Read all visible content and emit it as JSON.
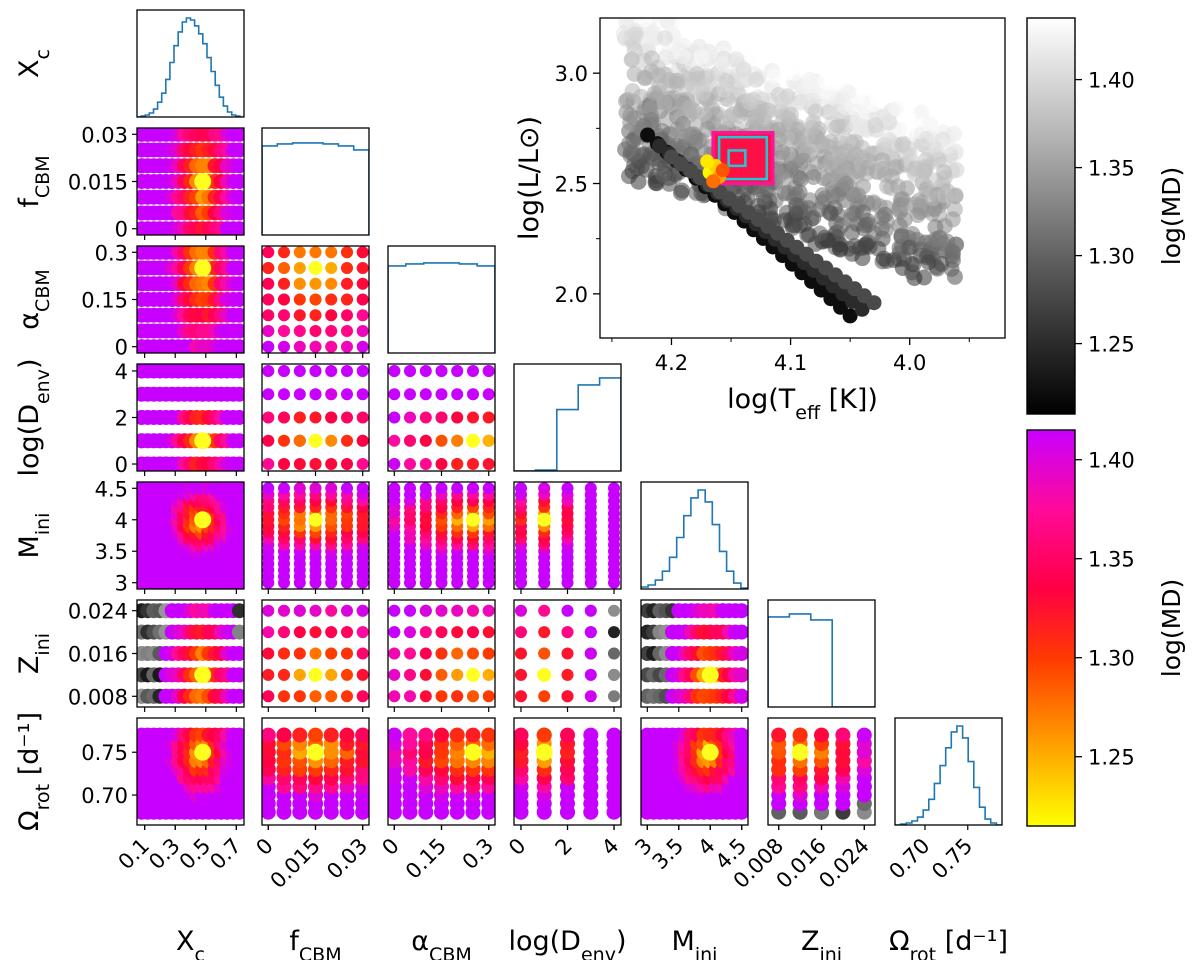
{
  "params": [
    {
      "id": "Xc",
      "name": "X",
      "sub": "c",
      "ticks": [
        "0.1",
        "0.3",
        "0.5",
        "0.7"
      ],
      "ticks_y": [],
      "range": [
        0.05,
        0.75
      ],
      "hist": [
        0,
        1,
        2,
        4,
        8,
        15,
        24,
        38,
        55,
        72,
        86,
        96,
        100,
        98,
        92,
        84,
        74,
        60,
        46,
        32,
        20,
        11,
        5,
        2,
        1,
        0
      ]
    },
    {
      "id": "fCBM",
      "name": "f",
      "sub": "CBM",
      "ticks": [
        "0",
        "0.015",
        "0.03"
      ],
      "ticks_y": [
        "0",
        "0.015",
        "0.03"
      ],
      "range": [
        -0.002,
        0.032
      ],
      "hist": [
        90,
        92,
        93,
        93,
        92,
        90,
        86
      ]
    },
    {
      "id": "aCBM",
      "name": "α",
      "sub": "CBM",
      "ticks": [
        "0",
        "0.15",
        "0.3"
      ],
      "ticks_y": [
        "0",
        "0.15",
        "0.3"
      ],
      "range": [
        -0.02,
        0.32
      ],
      "hist": [
        88,
        90,
        91,
        91,
        90,
        88
      ]
    },
    {
      "id": "Denv",
      "name": "log(D",
      "sub": "env",
      "suffix": ")",
      "ticks": [
        "0",
        "2",
        "4"
      ],
      "ticks_y": [
        "0",
        "2",
        "4"
      ],
      "range": [
        -0.3,
        4.3
      ],
      "hist": [
        0,
        1,
        62,
        87,
        94
      ]
    },
    {
      "id": "Mini",
      "name": "M",
      "sub": "ini",
      "ticks": [
        "3",
        "3.5",
        "4",
        "4.5"
      ],
      "ticks_y": [
        "3",
        "3.5",
        "4",
        "4.5"
      ],
      "range": [
        2.9,
        4.6
      ],
      "hist": [
        2,
        4,
        9,
        18,
        32,
        52,
        74,
        92,
        100,
        88,
        65,
        38,
        18,
        6,
        1
      ]
    },
    {
      "id": "Zini",
      "name": "Z",
      "sub": "ini",
      "ticks": [
        "0.008",
        "0.016",
        "0.024"
      ],
      "ticks_y": [
        "0.008",
        "0.016",
        "0.024"
      ],
      "range": [
        0.006,
        0.026
      ],
      "hist": [
        91,
        94,
        88,
        0,
        0
      ]
    },
    {
      "id": "Orot",
      "name": "Ω",
      "sub": "rot",
      "suffix": " [d⁻¹]",
      "ticks": [
        "0.70",
        "0.75"
      ],
      "ticks_y": [
        "0.70",
        "0.75"
      ],
      "range": [
        0.665,
        0.79
      ],
      "hist": [
        0,
        1,
        2,
        4,
        8,
        15,
        26,
        42,
        60,
        78,
        94,
        100,
        88,
        64,
        38,
        18,
        6,
        2,
        0
      ]
    }
  ],
  "hrd": {
    "xlabel_main": "log(T",
    "xlabel_sub": "eff",
    "xlabel_tail": " [K])",
    "ylabel": "log(L/L⊙)",
    "xticks": [
      "4.2",
      "4.1",
      "4.0"
    ],
    "yticks": [
      "2.0",
      "2.5",
      "3.0"
    ],
    "xlim": [
      4.26,
      3.92
    ],
    "ylim": [
      1.8,
      3.25
    ],
    "box_outer": {
      "t1": 4.165,
      "t2": 4.115,
      "l1": 2.5,
      "l2": 2.73
    },
    "box_mid": {
      "t1": 4.16,
      "t2": 4.12,
      "l1": 2.52,
      "l2": 2.71
    },
    "box_inner": {
      "t1": 4.152,
      "t2": 4.138,
      "l1": 2.58,
      "l2": 2.65
    }
  },
  "colorbars": {
    "gray": {
      "label": "log(MD)",
      "ticks": [
        "1.25",
        "1.30",
        "1.35",
        "1.40"
      ],
      "range": [
        1.21,
        1.435
      ]
    },
    "fire": {
      "label": "log(MD)",
      "ticks": [
        "1.25",
        "1.30",
        "1.35",
        "1.40"
      ],
      "range": [
        1.215,
        1.415
      ]
    }
  },
  "colors": {
    "hist_line": "#1f77b4",
    "box_magenta": "#ff1493",
    "box_cyan": "#1ec8d8",
    "fire_map": [
      "#ffff00",
      "#ffa200",
      "#ff3b00",
      "#ff0044",
      "#ff0a9a",
      "#c800ff"
    ],
    "gray_map": [
      "#000000",
      "#555555",
      "#aaaaaa",
      "#ffffff"
    ]
  }
}
